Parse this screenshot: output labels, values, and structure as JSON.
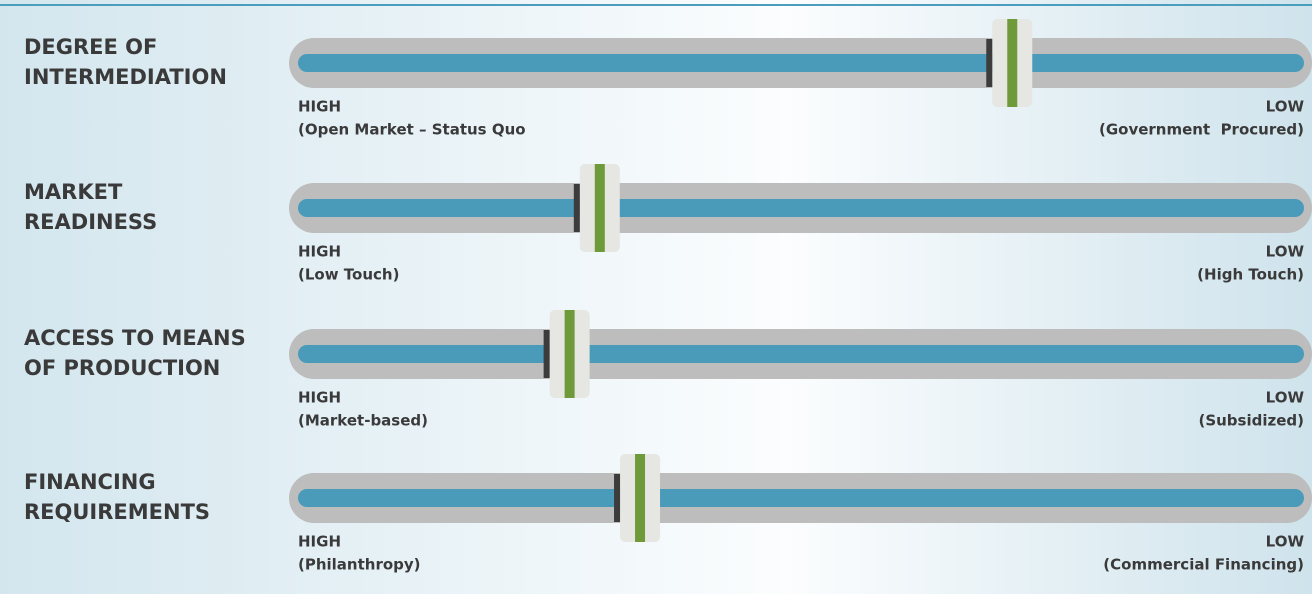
{
  "range": [
    0,
    100
  ],
  "rows": [
    {
      "title": [
        "DEGREE OF",
        "INTERMEDIATION"
      ],
      "left": [
        "HIGH",
        "(Open Market – Status Quo"
      ],
      "right": [
        "LOW",
        "(Government  Procured)"
      ],
      "value": 71
    },
    {
      "title": [
        "MARKET",
        "READINESS"
      ],
      "left": [
        "HIGH",
        "(Low Touch)"
      ],
      "right": [
        "LOW",
        "(High Touch)"
      ],
      "value": 30
    },
    {
      "title": [
        "ACCESS TO MEANS",
        "OF PRODUCTION"
      ],
      "left": [
        "HIGH",
        "(Market-based)"
      ],
      "right": [
        "LOW",
        "(Subsidized)"
      ],
      "value": 27
    },
    {
      "title": [
        "FINANCING",
        "REQUIREMENTS"
      ],
      "left": [
        "HIGH",
        "(Philanthropy)"
      ],
      "right": [
        "LOW",
        "(Commercial Financing)"
      ],
      "value": 34
    }
  ]
}
